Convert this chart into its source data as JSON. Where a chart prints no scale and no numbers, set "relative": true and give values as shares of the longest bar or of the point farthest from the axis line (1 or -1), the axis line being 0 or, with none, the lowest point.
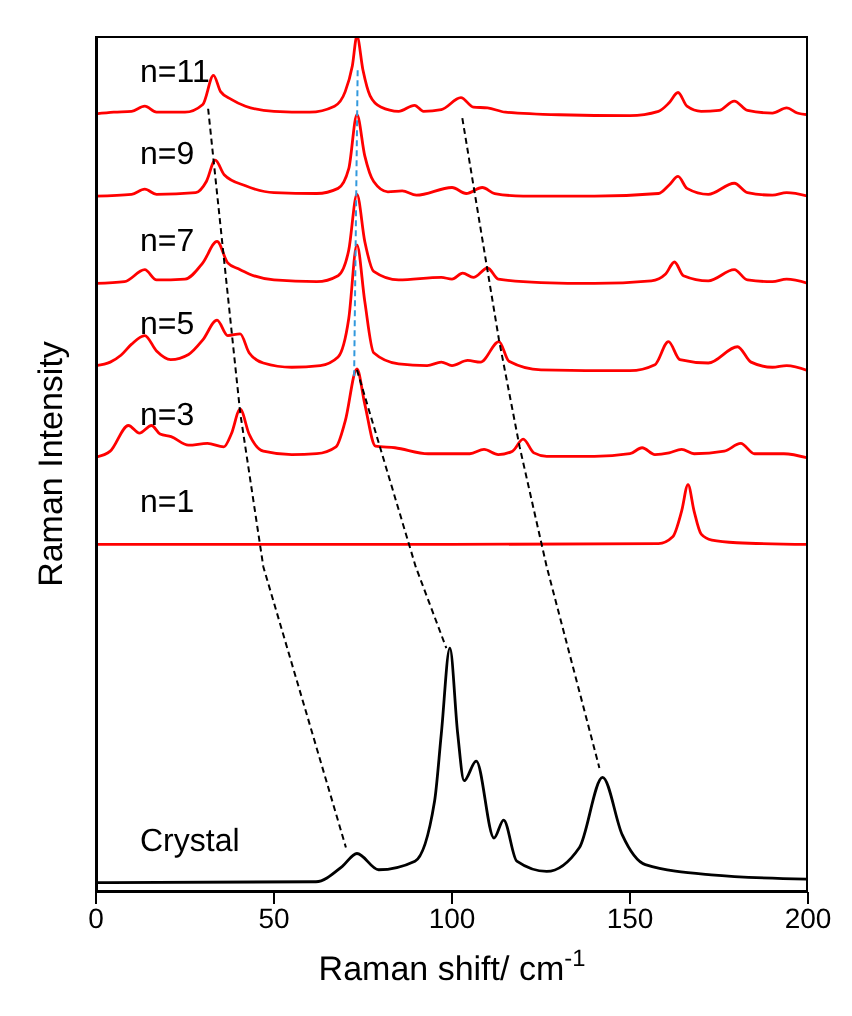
{
  "chart_data": {
    "type": "line",
    "relative": true,
    "xlabel": "Raman shift/ cm$^{-1}$",
    "ylabel": "Raman Intensity",
    "xlim": [
      0,
      200
    ],
    "xticks": [
      0,
      50,
      100,
      150,
      200
    ],
    "marker": "none",
    "series": [
      {
        "name": "n=11",
        "color": "#ff0000",
        "x": [
          0,
          5,
          10,
          13.7,
          17,
          25,
          30,
          33,
          35,
          38,
          42,
          50,
          60,
          67,
          70,
          72,
          73.3,
          75,
          77,
          80,
          85,
          89.5,
          92,
          97,
          102.5,
          106,
          110,
          115,
          130,
          150,
          158,
          161,
          163.5,
          166,
          170,
          175,
          179.3,
          183,
          190,
          194,
          197,
          200
        ],
        "values": [
          0.909,
          0.911,
          0.912,
          0.918,
          0.911,
          0.911,
          0.92,
          0.954,
          0.935,
          0.926,
          0.918,
          0.912,
          0.911,
          0.918,
          0.935,
          0.965,
          1.0,
          0.96,
          0.93,
          0.917,
          0.912,
          0.919,
          0.912,
          0.914,
          0.928,
          0.917,
          0.916,
          0.911,
          0.908,
          0.907,
          0.912,
          0.922,
          0.934,
          0.918,
          0.912,
          0.913,
          0.924,
          0.913,
          0.91,
          0.916,
          0.91,
          0.908
        ]
      },
      {
        "name": "n=9",
        "color": "#ff0000",
        "x": [
          0,
          10,
          13.7,
          17,
          28,
          31,
          33.5,
          36,
          42,
          50,
          62,
          68,
          71,
          73.3,
          75.5,
          78,
          82,
          86,
          90,
          100,
          104,
          108.5,
          112,
          120,
          140,
          158,
          161,
          163.5,
          166,
          172,
          179.3,
          183,
          190,
          194,
          200
        ],
        "values": [
          0.813,
          0.815,
          0.821,
          0.815,
          0.817,
          0.83,
          0.855,
          0.838,
          0.825,
          0.817,
          0.816,
          0.822,
          0.845,
          0.908,
          0.86,
          0.83,
          0.818,
          0.819,
          0.814,
          0.823,
          0.816,
          0.823,
          0.816,
          0.813,
          0.813,
          0.816,
          0.826,
          0.836,
          0.822,
          0.815,
          0.828,
          0.817,
          0.814,
          0.817,
          0.813
        ]
      },
      {
        "name": "n=7",
        "color": "#ff0000",
        "x": [
          0,
          8,
          13.7,
          17,
          25,
          30,
          34,
          37,
          40,
          43,
          50,
          62,
          68,
          71,
          73.3,
          75.5,
          78,
          85,
          97,
          100,
          103,
          106,
          110,
          113,
          125,
          140,
          156,
          160,
          162.5,
          165,
          172,
          179.3,
          183,
          190,
          194,
          200
        ],
        "values": [
          0.711,
          0.713,
          0.727,
          0.715,
          0.716,
          0.735,
          0.76,
          0.735,
          0.728,
          0.722,
          0.715,
          0.713,
          0.72,
          0.75,
          0.815,
          0.76,
          0.725,
          0.715,
          0.718,
          0.716,
          0.723,
          0.718,
          0.729,
          0.716,
          0.712,
          0.711,
          0.714,
          0.722,
          0.736,
          0.72,
          0.714,
          0.727,
          0.715,
          0.713,
          0.716,
          0.711
        ]
      },
      {
        "name": "n=5",
        "color": "#ff0000",
        "x": [
          0,
          4,
          7,
          10,
          13.7,
          17,
          21,
          26,
          30,
          34,
          37,
          40.5,
          43,
          47,
          55,
          63,
          68,
          71,
          73.3,
          75.5,
          78,
          85,
          93,
          97,
          100,
          104.4,
          108,
          113.2,
          116,
          125,
          150,
          157,
          160.8,
          164,
          172,
          180.2,
          184,
          190,
          194,
          200
        ],
        "values": [
          0.615,
          0.619,
          0.627,
          0.64,
          0.65,
          0.632,
          0.622,
          0.628,
          0.645,
          0.668,
          0.65,
          0.652,
          0.63,
          0.618,
          0.613,
          0.615,
          0.625,
          0.67,
          0.756,
          0.69,
          0.63,
          0.617,
          0.615,
          0.619,
          0.615,
          0.621,
          0.619,
          0.643,
          0.62,
          0.61,
          0.609,
          0.616,
          0.643,
          0.622,
          0.618,
          0.637,
          0.619,
          0.613,
          0.615,
          0.609
        ]
      },
      {
        "name": "n=3",
        "color": "#ff0000",
        "x": [
          0,
          4,
          9.1,
          12.2,
          15.6,
          18,
          21.1,
          26,
          31.3,
          35.9,
          38,
          40.5,
          43,
          47,
          55,
          62,
          67.4,
          70,
          73.3,
          75.5,
          78.5,
          84,
          93.3,
          105,
          109,
          113,
          117,
          120,
          123,
          126.6,
          140,
          150,
          153.4,
          157,
          161,
          164.5,
          168,
          176.5,
          181.1,
          185,
          193.2,
          200
        ],
        "values": [
          0.508,
          0.515,
          0.545,
          0.536,
          0.545,
          0.535,
          0.532,
          0.522,
          0.524,
          0.52,
          0.535,
          0.564,
          0.535,
          0.515,
          0.511,
          0.512,
          0.52,
          0.55,
          0.611,
          0.57,
          0.521,
          0.519,
          0.512,
          0.512,
          0.517,
          0.511,
          0.515,
          0.529,
          0.513,
          0.509,
          0.509,
          0.512,
          0.519,
          0.511,
          0.513,
          0.517,
          0.512,
          0.515,
          0.524,
          0.512,
          0.512,
          0.507
        ]
      },
      {
        "name": "n=1",
        "color": "#ff0000",
        "x": [
          0,
          100,
          158,
          162,
          164.5,
          166.3,
          168,
          170,
          173,
          180,
          200
        ],
        "values": [
          0.406,
          0.406,
          0.407,
          0.415,
          0.445,
          0.476,
          0.445,
          0.418,
          0.411,
          0.408,
          0.406
        ]
      },
      {
        "name": "Crystal",
        "color": "#000000",
        "x": [
          0,
          3.5,
          61.8,
          69.2,
          73.3,
          79.4,
          89.6,
          95.1,
          97,
          99.4,
          101.6,
          103.4,
          106.8,
          111.8,
          114.5,
          118.2,
          126.6,
          135.8,
          142.3,
          147.8,
          154.3,
          172.8,
          199.6
        ],
        "values": [
          0.011,
          0.011,
          0.012,
          0.03,
          0.045,
          0.026,
          0.036,
          0.106,
          0.185,
          0.285,
          0.185,
          0.13,
          0.153,
          0.063,
          0.084,
          0.036,
          0.024,
          0.052,
          0.134,
          0.067,
          0.032,
          0.02,
          0.015
        ]
      },
      {
        "color": "#000000",
        "line_style": "dashed",
        "x": [
          31.5,
          40.5,
          47,
          70.2
        ],
        "values": [
          0.915,
          0.56,
          0.38,
          0.052
        ]
      },
      {
        "color": "#000000",
        "line_style": "dashed",
        "x": [
          73.3,
          89.8,
          98.4
        ],
        "values": [
          0.61,
          0.38,
          0.285
        ]
      },
      {
        "color": "#000000",
        "line_style": "dashed",
        "x": [
          102.9,
          113.2,
          119,
          126.6,
          141.4
        ],
        "values": [
          0.904,
          0.645,
          0.52,
          0.38,
          0.145
        ]
      },
      {
        "color": "#3399dd",
        "line_style": "dashed",
        "x": [
          73.5,
          72.5
        ],
        "values": [
          0.96,
          0.6
        ]
      }
    ]
  }
}
